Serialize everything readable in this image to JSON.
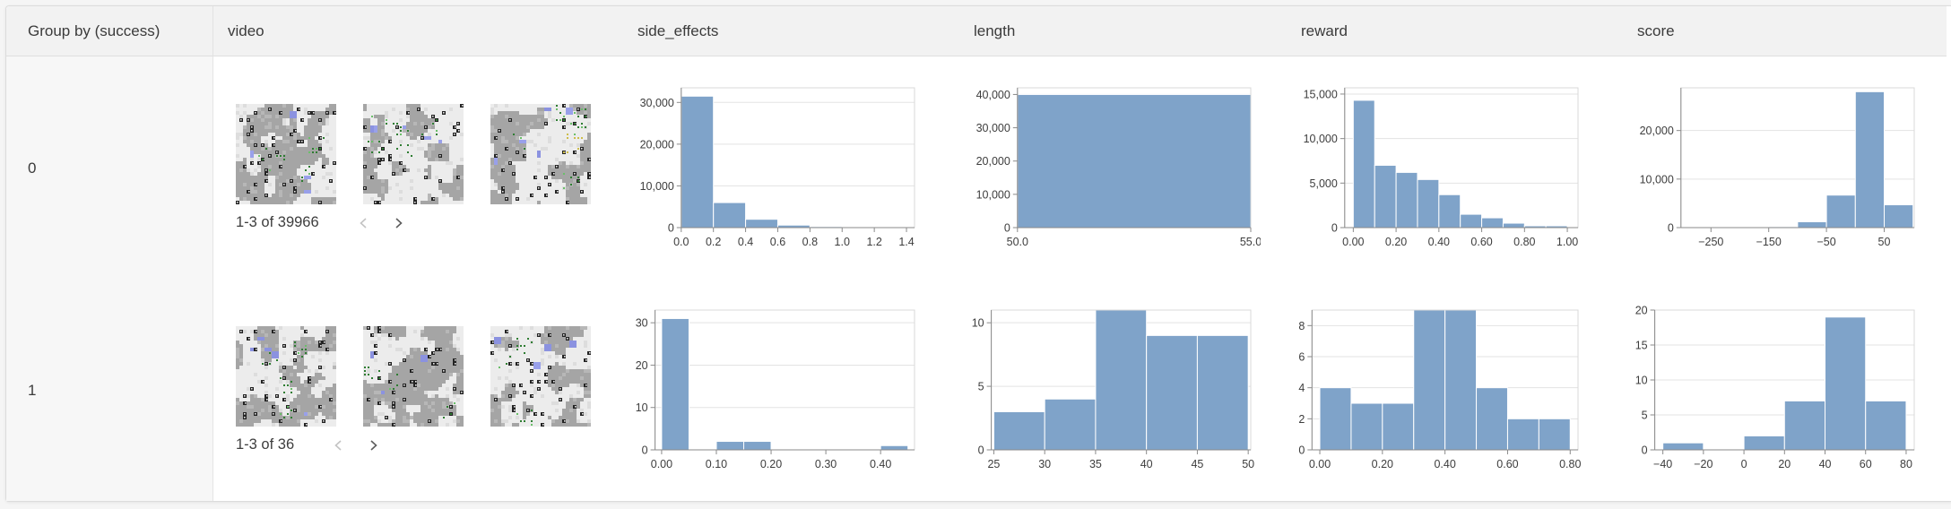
{
  "header": {
    "columns": [
      {
        "label": "Group by (success)"
      },
      {
        "label": "video"
      },
      {
        "label": "side_effects"
      },
      {
        "label": "length"
      },
      {
        "label": "reward"
      },
      {
        "label": "score"
      }
    ]
  },
  "rows": [
    {
      "group_value": "0",
      "video": {
        "pagination_label": "1-3 of 39966",
        "prev_icon": "chevron-left-icon",
        "next_icon": "chevron-right-icon",
        "thumbnails": 3,
        "thumbnail_kind": "gridworld-frame"
      }
    },
    {
      "group_value": "1",
      "video": {
        "pagination_label": "1-3 of 36",
        "prev_icon": "chevron-left-icon",
        "next_icon": "chevron-right-icon",
        "thumbnails": 3,
        "thumbnail_kind": "gridworld-frame"
      }
    }
  ],
  "chart_data": [
    {
      "type": "histogram",
      "group": "0",
      "column": "side_effects",
      "bin_start": 0,
      "bin_width": 0.2,
      "values": [
        31500,
        6000,
        2000,
        600,
        250,
        120,
        60
      ],
      "x_domain": [
        0,
        1.45
      ],
      "x_ticks": [
        0,
        0.2,
        0.4,
        0.6,
        0.8,
        1,
        1.2,
        1.4
      ],
      "x_tick_labels": [
        "0.0",
        "0.2",
        "0.4",
        "0.6",
        "0.8",
        "1.0",
        "1.2",
        "1.4"
      ],
      "y_ticks": [
        0,
        10000,
        20000,
        30000
      ],
      "y_tick_labels": [
        "0",
        "10,000",
        "20,000",
        "30,000"
      ],
      "y_max": 33500
    },
    {
      "type": "histogram",
      "group": "0",
      "column": "length",
      "bin_start": 50,
      "bin_width": 5,
      "values": [
        40000
      ],
      "x_domain": [
        50,
        55
      ],
      "x_ticks": [
        50,
        55
      ],
      "x_tick_labels": [
        "50.0",
        "55.0"
      ],
      "y_ticks": [
        0,
        10000,
        20000,
        30000,
        40000
      ],
      "y_tick_labels": [
        "0",
        "10,000",
        "20,000",
        "30,000",
        "40,000"
      ],
      "y_max": 42000
    },
    {
      "type": "histogram",
      "group": "0",
      "column": "reward",
      "bin_start": 0,
      "bin_width": 0.1,
      "values": [
        14300,
        7000,
        6200,
        5400,
        3700,
        1500,
        1100,
        500,
        200,
        200
      ],
      "x_domain": [
        -0.04,
        1.05
      ],
      "x_ticks": [
        0,
        0.2,
        0.4,
        0.6,
        0.8,
        1
      ],
      "x_tick_labels": [
        "0.00",
        "0.20",
        "0.40",
        "0.60",
        "0.80",
        "1.00"
      ],
      "y_ticks": [
        0,
        5000,
        10000,
        15000
      ],
      "y_tick_labels": [
        "0",
        "5,000",
        "10,000",
        "15,000"
      ],
      "y_max": 15700
    },
    {
      "type": "histogram",
      "group": "0",
      "column": "score",
      "bin_start": -300,
      "bin_width": 50,
      "values": [
        0,
        30,
        60,
        200,
        1200,
        6700,
        28000,
        4700
      ],
      "x_domain": [
        -302,
        102
      ],
      "x_ticks": [
        -250,
        -150,
        -50,
        50
      ],
      "x_tick_labels": [
        "−250",
        "−150",
        "−50",
        "50"
      ],
      "y_ticks": [
        0,
        10000,
        20000
      ],
      "y_tick_labels": [
        "0",
        "10,000",
        "20,000"
      ],
      "y_max": 28800
    },
    {
      "type": "histogram",
      "group": "1",
      "column": "side_effects",
      "bin_start": 0,
      "bin_width": 0.05,
      "values": [
        31,
        0,
        2,
        2,
        0,
        0,
        0,
        0,
        1
      ],
      "x_domain": [
        -0.012,
        0.462
      ],
      "x_ticks": [
        0,
        0.1,
        0.2,
        0.3,
        0.4
      ],
      "x_tick_labels": [
        "0.00",
        "0.10",
        "0.20",
        "0.30",
        "0.40"
      ],
      "y_ticks": [
        0,
        10,
        20,
        30
      ],
      "y_tick_labels": [
        "0",
        "10",
        "20",
        "30"
      ],
      "y_max": 33
    },
    {
      "type": "histogram",
      "group": "1",
      "column": "length",
      "bin_start": 25,
      "bin_width": 5,
      "values": [
        3,
        4,
        11,
        9,
        9
      ],
      "x_domain": [
        24.75,
        50.25
      ],
      "x_ticks": [
        25,
        30,
        35,
        40,
        45,
        50
      ],
      "x_tick_labels": [
        "25",
        "30",
        "35",
        "40",
        "45",
        "50"
      ],
      "y_ticks": [
        0,
        5,
        10
      ],
      "y_tick_labels": [
        "0",
        "5",
        "10"
      ],
      "y_max": 11
    },
    {
      "type": "histogram",
      "group": "1",
      "column": "reward",
      "bin_start": 0,
      "bin_width": 0.1,
      "values": [
        4,
        3,
        3,
        9,
        9,
        4,
        2,
        2
      ],
      "x_domain": [
        -0.025,
        0.825
      ],
      "x_ticks": [
        0,
        0.2,
        0.4,
        0.6,
        0.8
      ],
      "x_tick_labels": [
        "0.00",
        "0.20",
        "0.40",
        "0.60",
        "0.80"
      ],
      "y_ticks": [
        0,
        2,
        4,
        6,
        8
      ],
      "y_tick_labels": [
        "0",
        "2",
        "4",
        "6",
        "8"
      ],
      "y_max": 9
    },
    {
      "type": "histogram",
      "group": "1",
      "column": "score",
      "bin_start": -40,
      "bin_width": 20,
      "values": [
        1,
        0,
        2,
        7,
        19,
        7
      ],
      "x_domain": [
        -44,
        84
      ],
      "x_ticks": [
        -40,
        -20,
        0,
        20,
        40,
        60,
        80
      ],
      "x_tick_labels": [
        "−40",
        "−20",
        "0",
        "20",
        "40",
        "60",
        "80"
      ],
      "y_ticks": [
        0,
        5,
        10,
        15,
        20
      ],
      "y_tick_labels": [
        "0",
        "5",
        "10",
        "15",
        "20"
      ],
      "y_max": 20
    }
  ],
  "colors": {
    "histogram_bar": "#7fa3c9",
    "header_bg": "#f2f2f2",
    "group_column_bg": "#f7f7f7",
    "grid_line": "#e3e3e3",
    "axis_line": "#8a8a8a",
    "border": "#dcdcdc"
  }
}
